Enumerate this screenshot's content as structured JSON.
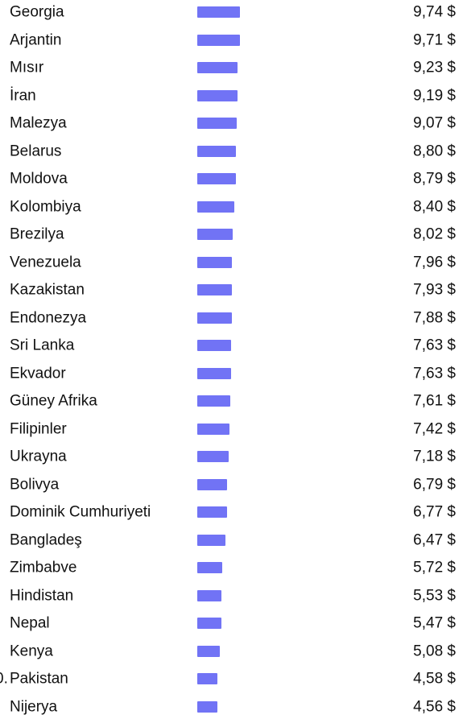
{
  "chart_data": {
    "type": "bar",
    "orientation": "horizontal",
    "bar_color": "#7173f5",
    "categories": [
      "Georgia",
      "Arjantin",
      "Mısır",
      "İran",
      "Malezya",
      "Belarus",
      "Moldova",
      "Kolombiya",
      "Brezilya",
      "Venezuela",
      "Kazakistan",
      "Endonezya",
      "Sri Lanka",
      "Ekvador",
      "Güney Afrika",
      "Filipinler",
      "Ukrayna",
      "Bolivya",
      "Dominik Cumhuriyeti",
      "Bangladeş",
      "Zimbabve",
      "Hindistan",
      "Nepal",
      "Kenya",
      "Pakistan",
      "Nijerya"
    ],
    "values": [
      9.74,
      9.71,
      9.23,
      9.19,
      9.07,
      8.8,
      8.79,
      8.4,
      8.02,
      7.96,
      7.93,
      7.88,
      7.63,
      7.63,
      7.61,
      7.42,
      7.18,
      6.79,
      6.77,
      6.47,
      5.72,
      5.53,
      5.47,
      5.08,
      4.58,
      4.56
    ],
    "value_labels": [
      "9,74 $",
      "9,71 $",
      "9,23 $",
      "9,19 $",
      "9,07 $",
      "8,80 $",
      "8,79 $",
      "8,40 $",
      "8,02 $",
      "7,96 $",
      "7,93 $",
      "7,88 $",
      "7,63 $",
      "7,63 $",
      "7,61 $",
      "7,42 $",
      "7,18 $",
      "6,79 $",
      "6,77 $",
      "6,47 $",
      "5,72 $",
      "5,53 $",
      "5,47 $",
      "5,08 $",
      "4,58 $",
      "4,56 $"
    ],
    "rank_fragments": [
      "",
      "",
      "",
      "",
      "",
      "",
      "",
      "",
      "",
      "",
      "",
      "",
      "",
      "",
      "",
      "",
      "",
      "",
      "",
      "",
      "",
      "",
      "",
      "",
      "0.",
      "."
    ]
  }
}
